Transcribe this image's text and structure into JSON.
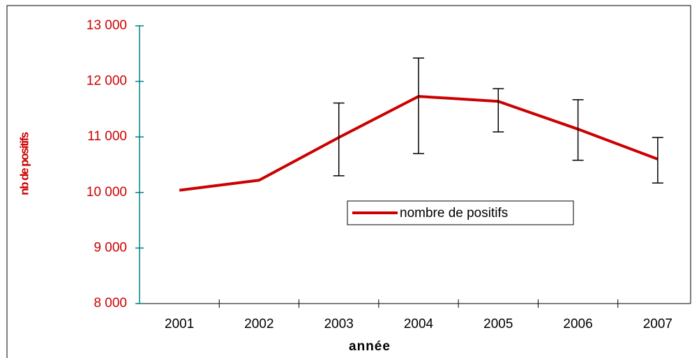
{
  "chart_data": {
    "type": "line",
    "x_label": "année",
    "y_label": "nb de positifs",
    "categories": [
      "2001",
      "2002",
      "2003",
      "2004",
      "2005",
      "2006",
      "2007"
    ],
    "series": [
      {
        "name": "nombre de positifs",
        "color": "#cc0000",
        "values": [
          10040,
          10220,
          10990,
          11730,
          11640,
          11140,
          10600
        ],
        "error_plus": [
          null,
          null,
          620,
          690,
          230,
          530,
          390
        ],
        "error_minus": [
          null,
          null,
          690,
          1030,
          550,
          560,
          430
        ]
      }
    ],
    "ylim": [
      8000,
      13000
    ],
    "yticks": [
      {
        "value": 8000,
        "label": "8 000"
      },
      {
        "value": 9000,
        "label": "9 000"
      },
      {
        "value": 10000,
        "label": "10 000"
      },
      {
        "value": 11000,
        "label": "11 000"
      },
      {
        "value": 12000,
        "label": "12 000"
      },
      {
        "value": 13000,
        "label": "13 000"
      }
    ],
    "legend": "center",
    "grid": false
  }
}
